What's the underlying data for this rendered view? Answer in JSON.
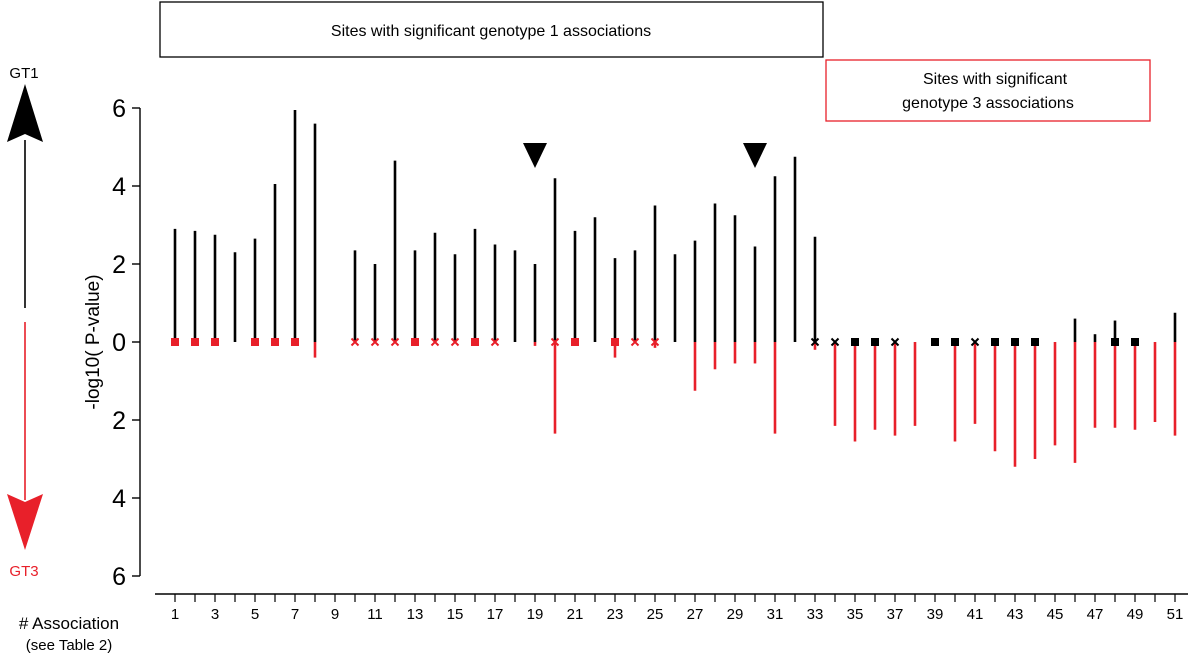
{
  "chart_data": {
    "type": "bar",
    "ylabel": "-log10( P-value)",
    "xlabel_line1": "# Association",
    "xlabel_line2": "(see Table 2)",
    "legend_gt1_box": "Sites with significant genotype 1 associations",
    "legend_gt3_box_line1": "Sites with significant",
    "legend_gt3_box_line2": "genotype 3 associations",
    "arrow_up_label": "GT1",
    "arrow_down_label": "GT3",
    "y_ticks_up": [
      0,
      2,
      4,
      6
    ],
    "y_ticks_down": [
      2,
      4,
      6
    ],
    "ylim": [
      -6,
      6.5
    ],
    "xlim": [
      0.5,
      51.5
    ],
    "x_ticks": [
      1,
      3,
      5,
      7,
      9,
      11,
      13,
      15,
      17,
      19,
      21,
      23,
      25,
      27,
      29,
      31,
      33,
      35,
      37,
      39,
      41,
      43,
      45,
      47,
      49,
      51
    ],
    "x_tick_minor": [
      2,
      4,
      6,
      8,
      10,
      12,
      14,
      16,
      18,
      20,
      22,
      24,
      26,
      28,
      30,
      32,
      34,
      36,
      38,
      40,
      42,
      44,
      46,
      48,
      50
    ],
    "colors": {
      "gt1": "#000000",
      "gt3": "#e8202a"
    },
    "series": [
      {
        "name": "GT1",
        "values": [
          2.9,
          2.85,
          2.75,
          2.3,
          2.65,
          4.05,
          5.95,
          5.6,
          0,
          2.35,
          2.0,
          4.65,
          2.35,
          2.8,
          2.25,
          2.9,
          2.5,
          2.35,
          2.0,
          4.2,
          2.85,
          3.2,
          2.15,
          2.35,
          3.5,
          2.25,
          2.6,
          3.55,
          3.25,
          2.45,
          4.25,
          4.75,
          2.7,
          0,
          0,
          0,
          0,
          0,
          0,
          0,
          0,
          0,
          0,
          0,
          0,
          0.6,
          0.2,
          0.55,
          0,
          0,
          0.75
        ]
      },
      {
        "name": "GT3",
        "values": [
          0,
          0,
          0,
          0,
          0,
          0,
          0,
          0.4,
          0,
          0,
          0,
          0,
          0,
          0,
          0,
          0,
          0,
          0,
          0.1,
          2.35,
          0,
          0,
          0.4,
          0,
          0.15,
          0,
          1.25,
          0.7,
          0.55,
          0.55,
          2.35,
          0,
          0.2,
          2.15,
          2.55,
          2.25,
          2.4,
          2.15,
          0,
          2.55,
          2.1,
          2.8,
          3.2,
          3.0,
          2.65,
          3.1,
          2.2,
          2.2,
          2.25,
          2.05,
          2.4
        ]
      }
    ],
    "markers": [
      {
        "assoc": 1,
        "shape": "square",
        "side": "gt3"
      },
      {
        "assoc": 2,
        "shape": "square",
        "side": "gt3"
      },
      {
        "assoc": 3,
        "shape": "square",
        "side": "gt3"
      },
      {
        "assoc": 5,
        "shape": "square",
        "side": "gt3"
      },
      {
        "assoc": 6,
        "shape": "square",
        "side": "gt3"
      },
      {
        "assoc": 7,
        "shape": "square",
        "side": "gt3"
      },
      {
        "assoc": 10,
        "shape": "cross",
        "side": "gt3"
      },
      {
        "assoc": 11,
        "shape": "cross",
        "side": "gt3"
      },
      {
        "assoc": 12,
        "shape": "cross",
        "side": "gt3"
      },
      {
        "assoc": 13,
        "shape": "square",
        "side": "gt3"
      },
      {
        "assoc": 14,
        "shape": "cross",
        "side": "gt3"
      },
      {
        "assoc": 15,
        "shape": "cross",
        "side": "gt3"
      },
      {
        "assoc": 16,
        "shape": "square",
        "side": "gt3"
      },
      {
        "assoc": 17,
        "shape": "cross",
        "side": "gt3"
      },
      {
        "assoc": 20,
        "shape": "cross",
        "side": "gt3"
      },
      {
        "assoc": 21,
        "shape": "square",
        "side": "gt3"
      },
      {
        "assoc": 23,
        "shape": "square",
        "side": "gt3"
      },
      {
        "assoc": 24,
        "shape": "cross",
        "side": "gt3"
      },
      {
        "assoc": 25,
        "shape": "cross",
        "side": "gt3"
      },
      {
        "assoc": 33,
        "shape": "cross",
        "side": "gt1"
      },
      {
        "assoc": 34,
        "shape": "cross",
        "side": "gt1"
      },
      {
        "assoc": 35,
        "shape": "square",
        "side": "gt1"
      },
      {
        "assoc": 36,
        "shape": "square",
        "side": "gt1"
      },
      {
        "assoc": 37,
        "shape": "cross",
        "side": "gt1"
      },
      {
        "assoc": 39,
        "shape": "square",
        "side": "gt1"
      },
      {
        "assoc": 40,
        "shape": "square",
        "side": "gt1"
      },
      {
        "assoc": 41,
        "shape": "cross",
        "side": "gt1"
      },
      {
        "assoc": 42,
        "shape": "square",
        "side": "gt1"
      },
      {
        "assoc": 43,
        "shape": "square",
        "side": "gt1"
      },
      {
        "assoc": 44,
        "shape": "square",
        "side": "gt1"
      },
      {
        "assoc": 48,
        "shape": "square",
        "side": "gt1"
      },
      {
        "assoc": 49,
        "shape": "square",
        "side": "gt1"
      }
    ],
    "highlights": [
      {
        "assoc": 19,
        "shape": "down-triangle"
      },
      {
        "assoc": 30,
        "shape": "down-triangle"
      }
    ]
  }
}
